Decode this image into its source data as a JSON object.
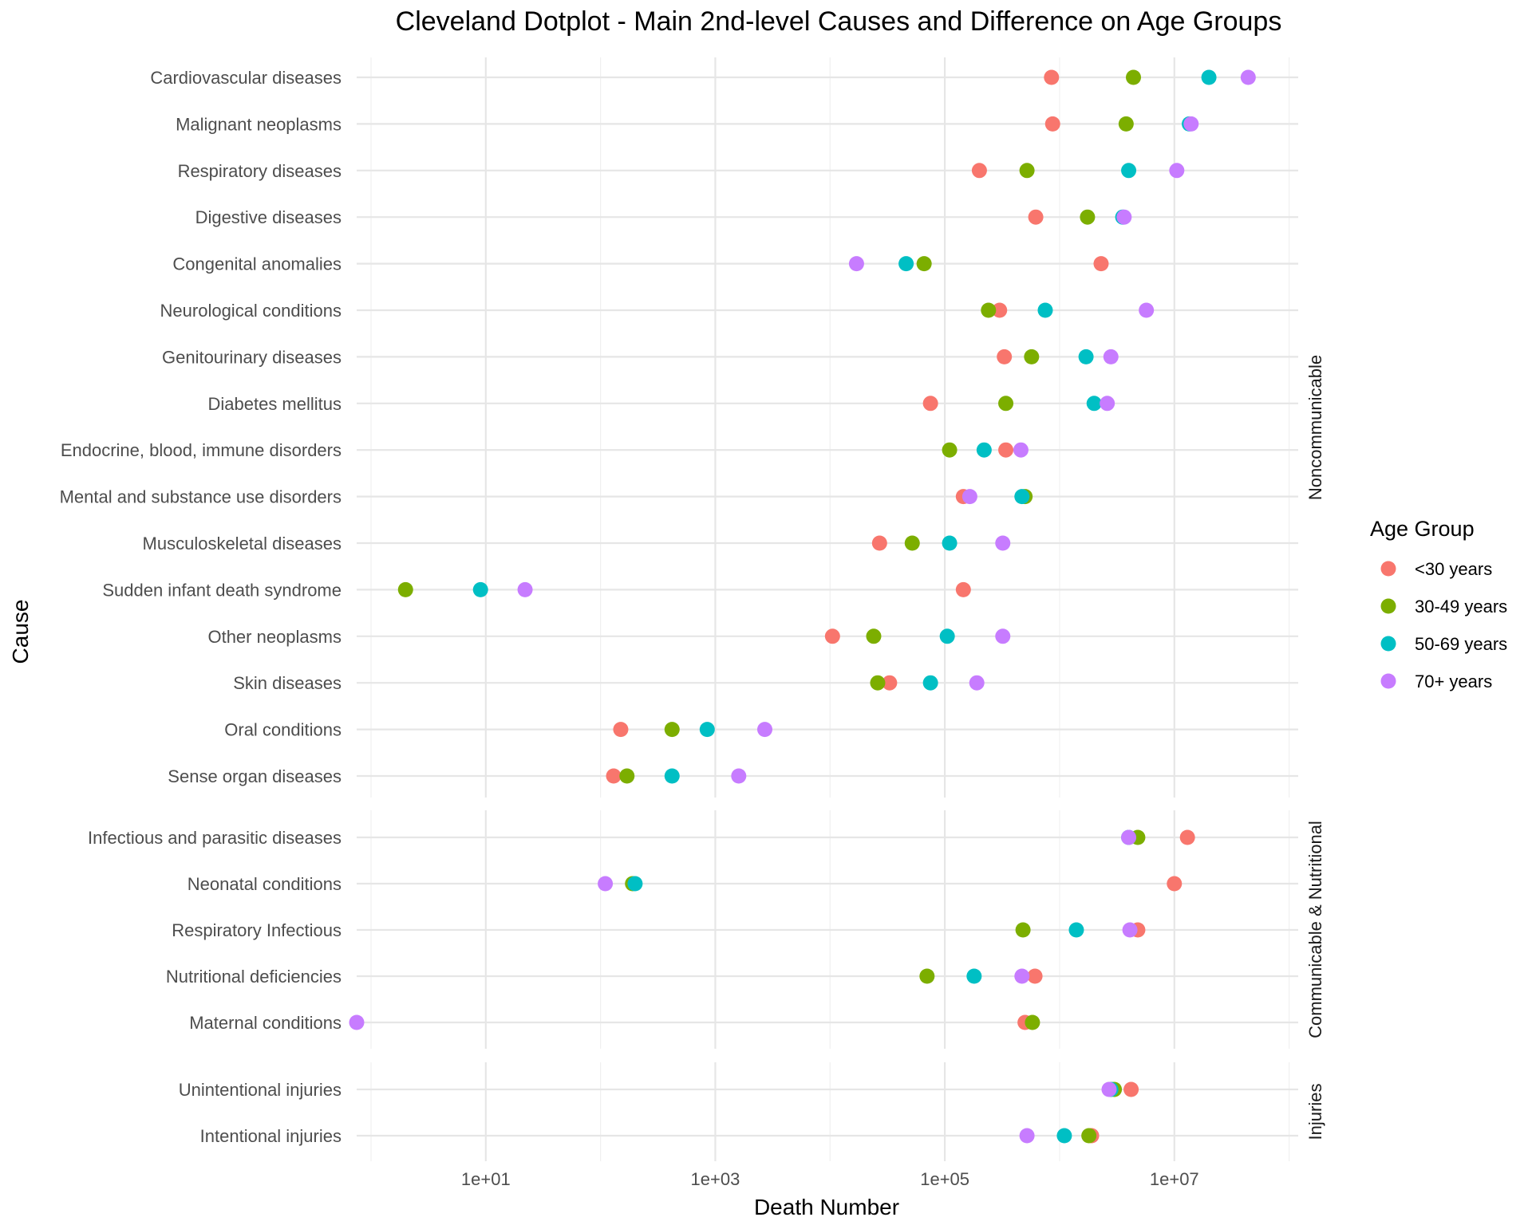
{
  "chart_data": {
    "type": "scatter",
    "title": "Cleveland Dotplot - Main 2nd-level Causes and Difference on Age Groups",
    "xlabel": "Death Number",
    "ylabel": "Cause",
    "x_scale": "log10",
    "xlim": [
      0.75,
      120000000
    ],
    "x_ticks": [
      10,
      1000,
      100000,
      10000000
    ],
    "x_tick_labels": [
      "1e+01",
      "1e+03",
      "1e+05",
      "1e+07"
    ],
    "grid": true,
    "legend": {
      "title": "Age Group",
      "position": "right",
      "entries": [
        {
          "name": "<30 years",
          "color": "#F8766D"
        },
        {
          "name": "30-49 years",
          "color": "#7CAE00"
        },
        {
          "name": "50-69 years",
          "color": "#00BFC4"
        },
        {
          "name": "70+ years",
          "color": "#C77CFF"
        }
      ]
    },
    "panels": [
      {
        "name": "Noncommunicable",
        "categories": [
          {
            "cause": "Cardiovascular diseases",
            "values": [
              850000,
              4400000,
              20000000,
              44000000
            ]
          },
          {
            "cause": "Malignant neoplasms",
            "values": [
              870000,
              3800000,
              13500000,
              14000000
            ]
          },
          {
            "cause": "Respiratory diseases",
            "values": [
              200000,
              520000,
              4000000,
              10500000
            ]
          },
          {
            "cause": "Digestive diseases",
            "values": [
              620000,
              1750000,
              3550000,
              3650000
            ]
          },
          {
            "cause": "Congenital anomalies",
            "values": [
              2300000,
              66000,
              46000,
              17000
            ]
          },
          {
            "cause": "Neurological conditions",
            "values": [
              300000,
              240000,
              750000,
              5700000
            ]
          },
          {
            "cause": "Genitourinary diseases",
            "values": [
              330000,
              570000,
              1700000,
              2800000
            ]
          },
          {
            "cause": "Diabetes mellitus",
            "values": [
              75000,
              340000,
              2000000,
              2600000
            ]
          },
          {
            "cause": "Endocrine, blood, immune disorders",
            "values": [
              340000,
              110000,
              220000,
              460000
            ]
          },
          {
            "cause": "Mental and substance use disorders",
            "values": [
              145000,
              500000,
              470000,
              165000
            ]
          },
          {
            "cause": "Musculoskeletal diseases",
            "values": [
              27000,
              52000,
              110000,
              320000
            ]
          },
          {
            "cause": "Sudden infant death syndrome",
            "values": [
              145000,
              2,
              9,
              22
            ]
          },
          {
            "cause": "Other neoplasms",
            "values": [
              10500,
              24000,
              105000,
              320000
            ]
          },
          {
            "cause": "Skin diseases",
            "values": [
              33000,
              26000,
              75000,
              190000
            ]
          },
          {
            "cause": "Oral conditions",
            "values": [
              150,
              420,
              850,
              2700
            ]
          },
          {
            "cause": "Sense organ diseases",
            "values": [
              130,
              170,
              420,
              1600
            ]
          }
        ]
      },
      {
        "name": "Communicable & Nutritional",
        "categories": [
          {
            "cause": "Infectious and parasitic diseases",
            "values": [
              13000000,
              4800000,
              4000000,
              4000000
            ]
          },
          {
            "cause": "Neonatal conditions",
            "values": [
              10000000,
              190,
              200,
              110
            ]
          },
          {
            "cause": "Respiratory Infectious",
            "values": [
              4800000,
              480000,
              1400000,
              4100000
            ]
          },
          {
            "cause": "Nutritional deficiencies",
            "values": [
              610000,
              70000,
              180000,
              470000
            ]
          },
          {
            "cause": "Maternal conditions",
            "values": [
              500000,
              580000,
              null,
              0.75
            ]
          }
        ]
      },
      {
        "name": "Injuries",
        "categories": [
          {
            "cause": "Unintentional injuries",
            "values": [
              4200000,
              3000000,
              2800000,
              2700000
            ]
          },
          {
            "cause": "Intentional injuries",
            "values": [
              1900000,
              1800000,
              1100000,
              520000
            ]
          }
        ]
      }
    ]
  }
}
